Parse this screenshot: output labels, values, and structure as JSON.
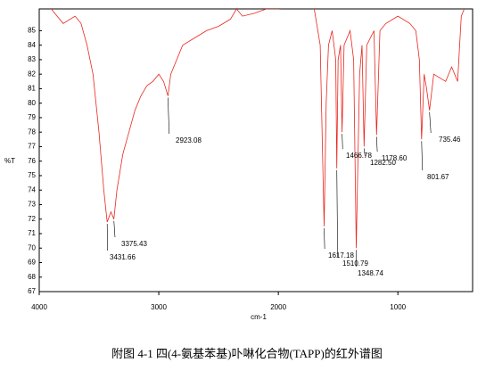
{
  "chart_data": {
    "type": "line",
    "y_label": "%T",
    "x_label": "cm-1",
    "caption": "附图 4-1 四(4-氨基苯基)卟啉化合物(TAPP)的红外谱图",
    "xlim": [
      4000,
      375
    ],
    "xticks": [
      4000,
      3000,
      2000,
      1000
    ],
    "ylim": [
      67,
      86.5
    ],
    "yticks": [
      67,
      68,
      69,
      70,
      71,
      72,
      73,
      74,
      75,
      76,
      77,
      78,
      79,
      80,
      81,
      82,
      83,
      84,
      85
    ],
    "series": [
      {
        "color": "#e8261e",
        "x": [
          4000,
          3900,
          3850,
          3800,
          3700,
          3650,
          3600,
          3550,
          3500,
          3460,
          3431.66,
          3400,
          3375.43,
          3350,
          3300,
          3250,
          3200,
          3150,
          3100,
          3050,
          3000,
          2960,
          2923.08,
          2900,
          2850,
          2800,
          2700,
          2600,
          2500,
          2400,
          2350,
          2300,
          2200,
          2100,
          2000,
          1900,
          1800,
          1700,
          1650,
          1617.18,
          1600,
          1580,
          1550,
          1520,
          1510.79,
          1500,
          1480,
          1466.78,
          1450,
          1400,
          1370,
          1348.74,
          1320,
          1300,
          1282.5,
          1260,
          1200,
          1178.6,
          1150,
          1100,
          1000,
          900,
          850,
          820,
          801.67,
          780,
          760,
          735.46,
          700,
          600,
          550,
          500,
          470,
          420,
          400
        ],
        "values": [
          87,
          86.5,
          86,
          85.5,
          86,
          85.5,
          84,
          82,
          78,
          74,
          71.8,
          72.5,
          72,
          74,
          76.5,
          78,
          79.5,
          80.5,
          81.2,
          81.5,
          82,
          81.5,
          80.5,
          82,
          83,
          84,
          84.5,
          85,
          85.3,
          85.8,
          86.5,
          86,
          86.2,
          86.5,
          86.5,
          86.6,
          86.7,
          86.5,
          84,
          71.5,
          80,
          84,
          85,
          83,
          75.5,
          83,
          84,
          78,
          84,
          85,
          83,
          70,
          82,
          84,
          77,
          84,
          85,
          77.8,
          85,
          85.5,
          86,
          85.5,
          85,
          83,
          77.5,
          82,
          81,
          79.5,
          82,
          81.5,
          82.5,
          81.5,
          86,
          87,
          87
        ]
      }
    ],
    "annotations": [
      "3431.66",
      "3375.43",
      "2923.08",
      "1617.18",
      "1510.79",
      "1348.74",
      "1466.78",
      "1282.50",
      "1178.60",
      "801.67",
      "735.46"
    ]
  }
}
